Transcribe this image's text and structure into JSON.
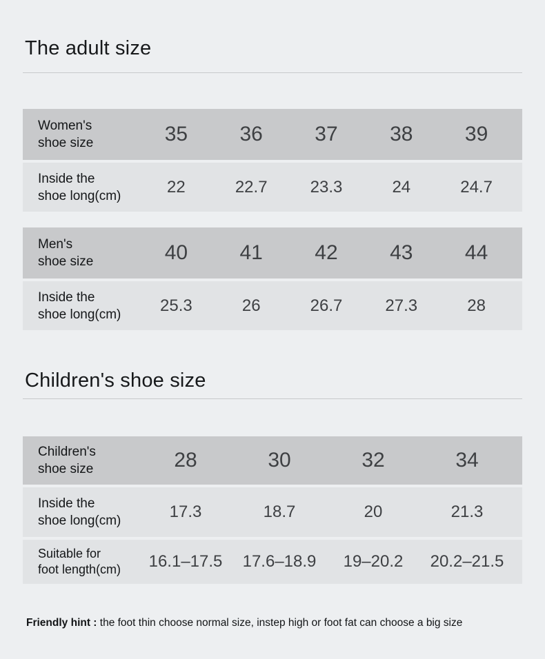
{
  "colors": {
    "page_bg": "#edeff1",
    "row_dark": "#c8c9cb",
    "row_light": "#e1e3e5",
    "divider": "#c7cacc",
    "value_text": "#3e4043",
    "label_text": "#141618"
  },
  "adult": {
    "title": "The adult size"
  },
  "children_section": {
    "title": "Children's shoe size"
  },
  "tables": {
    "women": {
      "size_row": {
        "label_line1": "Women's",
        "label_line2": "shoe size",
        "values": [
          "35",
          "36",
          "37",
          "38",
          "39"
        ]
      },
      "inside_row": {
        "label_line1": "Inside the",
        "label_line2": "shoe long(cm)",
        "values": [
          "22",
          "22.7",
          "23.3",
          "24",
          "24.7"
        ]
      }
    },
    "men": {
      "size_row": {
        "label_line1": "Men's",
        "label_line2": "shoe size",
        "values": [
          "40",
          "41",
          "42",
          "43",
          "44"
        ]
      },
      "inside_row": {
        "label_line1": "Inside the",
        "label_line2": "shoe long(cm)",
        "values": [
          "25.3",
          "26",
          "26.7",
          "27.3",
          "28"
        ]
      }
    },
    "children": {
      "size_row": {
        "label_line1": "Children's",
        "label_line2": "shoe size",
        "values": [
          "28",
          "30",
          "32",
          "34"
        ]
      },
      "inside_row": {
        "label_line1": "Inside the",
        "label_line2": "shoe long(cm)",
        "values": [
          "17.3",
          "18.7",
          "20",
          "21.3"
        ]
      },
      "suitable_row": {
        "label_line1": "Suitable for",
        "label_line2": "foot length(cm)",
        "values": [
          "16.1–17.5",
          "17.6–18.9",
          "19–20.2",
          "20.2–21.5"
        ]
      }
    }
  },
  "hint": {
    "bold": "Friendly hint :",
    "text": " the foot thin choose normal size, instep high or foot fat can choose a big size"
  }
}
